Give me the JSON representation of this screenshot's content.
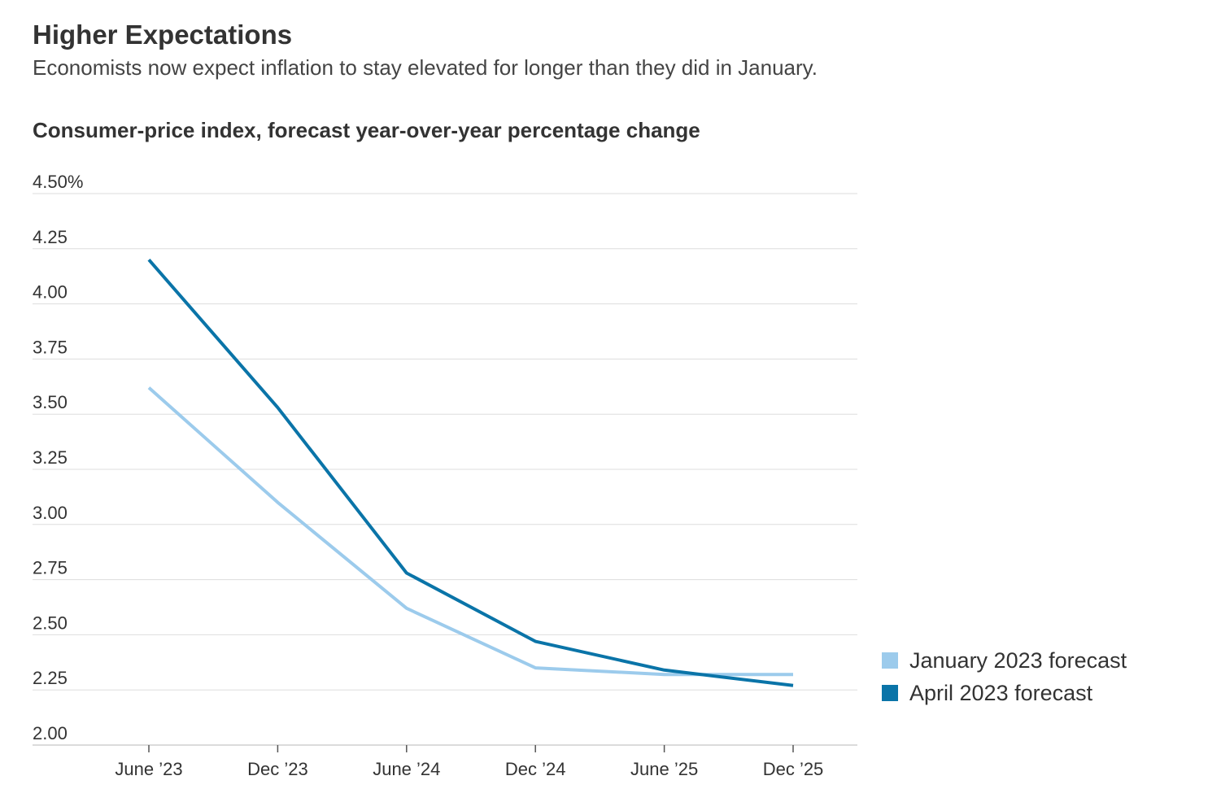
{
  "header": {
    "title": "Higher Expectations",
    "subtitle": "Economists now expect inflation to stay elevated for longer than they did in January."
  },
  "chart_data": {
    "type": "line",
    "title": "Consumer-price index, forecast year-over-year percentage change",
    "xlabel": "",
    "ylabel": "",
    "categories": [
      "June ’23",
      "Dec ’23",
      "June ’24",
      "Dec ’24",
      "June ’25",
      "Dec ’25"
    ],
    "y_ticks": [
      "4.50%",
      "4.25",
      "4.00",
      "3.75",
      "3.50",
      "3.25",
      "3.00",
      "2.75",
      "2.50",
      "2.25",
      "2.00"
    ],
    "y_tick_values": [
      4.5,
      4.25,
      4.0,
      3.75,
      3.5,
      3.25,
      3.0,
      2.75,
      2.5,
      2.25,
      2.0
    ],
    "ylim": [
      2.0,
      4.5
    ],
    "grid": true,
    "legend_position": "bottom-right",
    "series": [
      {
        "name": "January 2023 forecast",
        "color": "#9ccbec",
        "values": [
          3.62,
          3.1,
          2.62,
          2.35,
          2.32,
          2.32
        ]
      },
      {
        "name": "April 2023 forecast",
        "color": "#0a74a8",
        "values": [
          4.2,
          3.53,
          2.78,
          2.47,
          2.34,
          2.27
        ]
      }
    ]
  }
}
